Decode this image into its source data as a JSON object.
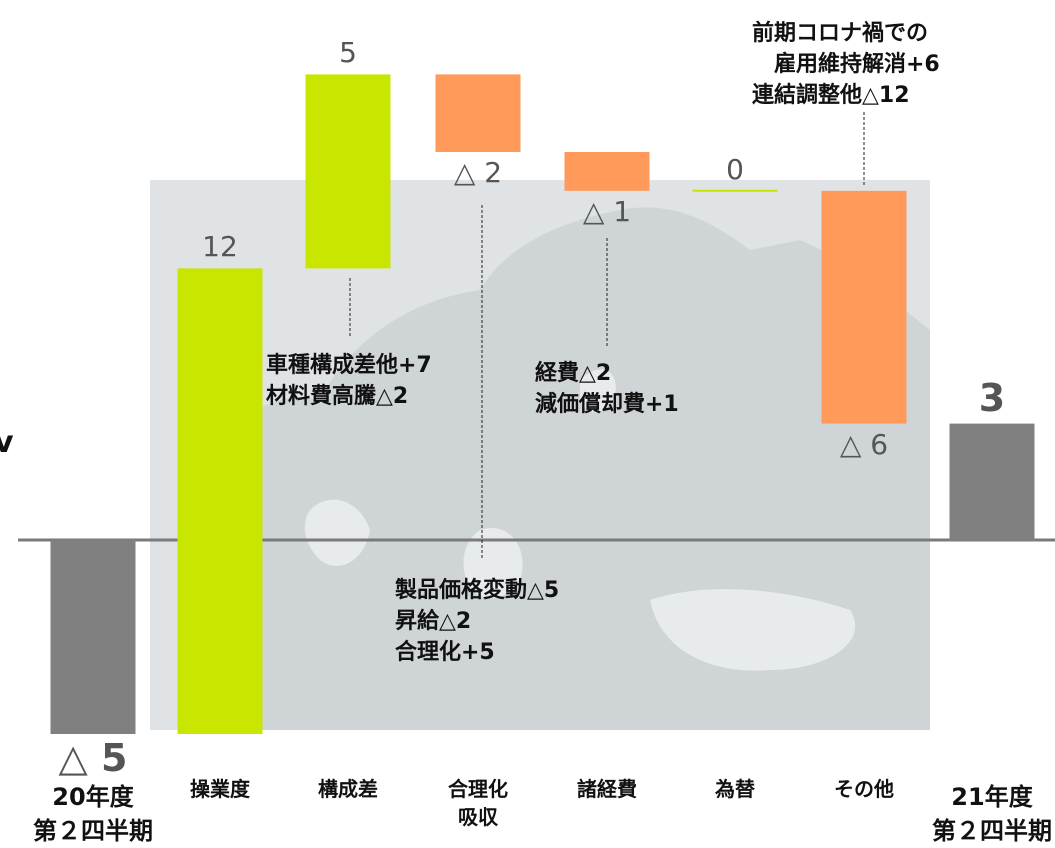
{
  "chart_data": {
    "type": "bar",
    "subtype": "waterfall",
    "categories": [
      "20年度\n第２四半期",
      "操業度",
      "構成差",
      "合理化\n吸収",
      "諸経費",
      "為替",
      "その他",
      "21年度\n第２四半期"
    ],
    "values": [
      -5,
      12,
      5,
      -2,
      -1,
      0,
      -6,
      3
    ],
    "value_labels": [
      "△ 5",
      "12",
      "5",
      "△ 2",
      "△ 1",
      "0",
      "△ 6",
      "3"
    ],
    "bar_kinds": [
      "total",
      "delta",
      "delta",
      "delta",
      "delta",
      "delta",
      "delta",
      "total"
    ],
    "colors": {
      "total": "#808080",
      "increase": "#c8e600",
      "decrease": "#ff9a5a",
      "zero_line": "#7a7a7a",
      "map": "#dfe3e6",
      "map_land": "#cfd4d7"
    },
    "ylim": [
      -5,
      17
    ],
    "annotations": [
      {
        "category": "構成差",
        "text": "車種構成差他+7\n材料費高騰△2"
      },
      {
        "category": "合理化\n吸収",
        "text": "製品価格変動△5\n昇給△2\n合理化+5"
      },
      {
        "category": "諸経費",
        "text": "経費△2\n減価償却費+1"
      },
      {
        "category": "その他",
        "text": "前期コロナ禍での\n　雇用維持解消+6\n連結調整他△12"
      }
    ],
    "edge_text": "v"
  }
}
